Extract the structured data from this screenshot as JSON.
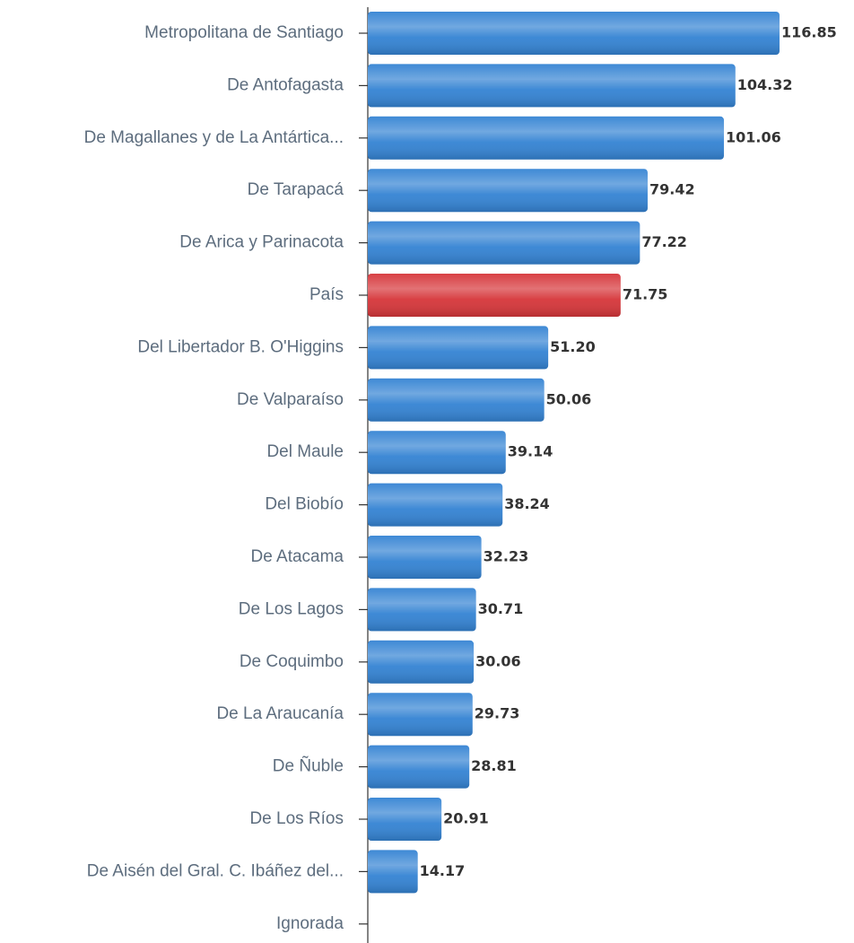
{
  "chart_data": {
    "type": "hbar",
    "categories": [
      "Metropolitana de Santiago",
      "De Antofagasta",
      "De Magallanes y de La Antártica...",
      "De Tarapacá",
      "De Arica y Parinacota",
      "País",
      "Del Libertador B. O'Higgins",
      "De Valparaíso",
      "Del Maule",
      "Del Biobío",
      "De Atacama",
      "De Los Lagos",
      "De Coquimbo",
      "De La Araucanía",
      "De Ñuble",
      "De Los Ríos",
      "De Aisén del Gral. C. Ibáñez del...",
      "Ignorada"
    ],
    "values": [
      116.85,
      104.32,
      101.06,
      79.42,
      77.22,
      71.75,
      51.2,
      50.06,
      39.14,
      38.24,
      32.23,
      30.71,
      30.06,
      29.73,
      28.81,
      20.91,
      14.17,
      null
    ],
    "value_labels": [
      "116.85",
      "104.32",
      "101.06",
      "79.42",
      "77.22",
      "71.75",
      "51.20",
      "50.06",
      "39.14",
      "38.24",
      "32.23",
      "30.71",
      "30.06",
      "29.73",
      "28.81",
      "20.91",
      "14.17",
      null
    ],
    "colors": [
      "#3483d3",
      "#3483d3",
      "#3483d3",
      "#3483d3",
      "#3483d3",
      "#d6363a",
      "#3483d3",
      "#3483d3",
      "#3483d3",
      "#3483d3",
      "#3483d3",
      "#3483d3",
      "#3483d3",
      "#3483d3",
      "#3483d3",
      "#3483d3",
      "#3483d3",
      "#3483d3"
    ]
  }
}
